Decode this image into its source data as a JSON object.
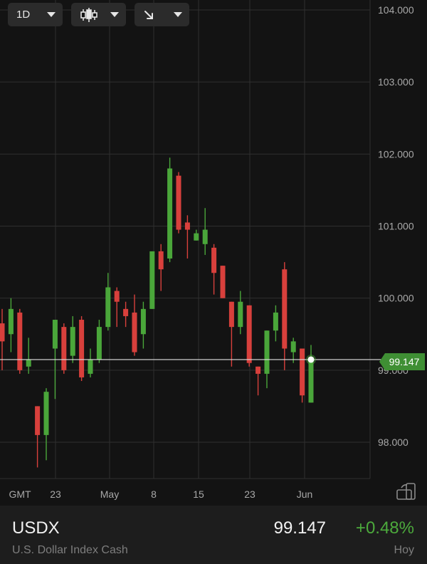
{
  "toolbar": {
    "timeframe": "1D",
    "chart_type_icon": "candlestick-icon",
    "drawing_tool_icon": "arrow-down-right-icon"
  },
  "colors": {
    "up": "#4aa63a",
    "down": "#d8403c",
    "grid": "#2f2f2f",
    "price_line": "#e0e0e0",
    "badge": "#3f8f34"
  },
  "chart_data": {
    "type": "candlestick",
    "instrument": "USDX",
    "ylim": [
      97.5,
      104.2
    ],
    "y_ticks": [
      "104.000",
      "103.000",
      "102.000",
      "101.000",
      "100.000",
      "99.000",
      "98.000"
    ],
    "x_ticks": [
      "GMT",
      "23",
      "May",
      "8",
      "15",
      "23",
      "Jun"
    ],
    "last_price": "99.147",
    "candles": [
      {
        "o": 99.65,
        "h": 99.85,
        "l": 99.0,
        "c": 99.4
      },
      {
        "o": 99.5,
        "h": 100.0,
        "l": 99.25,
        "c": 99.85
      },
      {
        "o": 99.8,
        "h": 99.85,
        "l": 98.95,
        "c": 99.0
      },
      {
        "o": 99.05,
        "h": 99.45,
        "l": 98.95,
        "c": 99.15
      },
      {
        "o": 98.5,
        "h": 98.5,
        "l": 97.65,
        "c": 98.1
      },
      {
        "o": 98.1,
        "h": 98.75,
        "l": 97.75,
        "c": 98.7
      },
      {
        "o": 99.3,
        "h": 99.7,
        "l": 98.6,
        "c": 99.7
      },
      {
        "o": 99.6,
        "h": 99.65,
        "l": 98.95,
        "c": 99.0
      },
      {
        "o": 99.2,
        "h": 99.75,
        "l": 99.1,
        "c": 99.6
      },
      {
        "o": 99.7,
        "h": 99.75,
        "l": 98.85,
        "c": 98.9
      },
      {
        "o": 98.95,
        "h": 99.3,
        "l": 98.9,
        "c": 99.15
      },
      {
        "o": 99.15,
        "h": 99.7,
        "l": 99.1,
        "c": 99.6
      },
      {
        "o": 99.6,
        "h": 100.35,
        "l": 99.55,
        "c": 100.15
      },
      {
        "o": 100.1,
        "h": 100.15,
        "l": 99.6,
        "c": 99.95
      },
      {
        "o": 99.85,
        "h": 99.95,
        "l": 99.6,
        "c": 99.75
      },
      {
        "o": 99.8,
        "h": 100.05,
        "l": 99.2,
        "c": 99.25
      },
      {
        "o": 99.5,
        "h": 99.95,
        "l": 99.3,
        "c": 99.85
      },
      {
        "o": 99.85,
        "h": 100.65,
        "l": 99.85,
        "c": 100.65
      },
      {
        "o": 100.65,
        "h": 100.75,
        "l": 100.1,
        "c": 100.4
      },
      {
        "o": 100.55,
        "h": 101.95,
        "l": 100.5,
        "c": 101.8
      },
      {
        "o": 101.7,
        "h": 101.75,
        "l": 100.9,
        "c": 100.95
      },
      {
        "o": 101.05,
        "h": 101.15,
        "l": 100.55,
        "c": 100.95
      },
      {
        "o": 100.8,
        "h": 100.95,
        "l": 100.8,
        "c": 100.9
      },
      {
        "o": 100.75,
        "h": 101.25,
        "l": 100.6,
        "c": 100.95
      },
      {
        "o": 100.7,
        "h": 100.75,
        "l": 100.05,
        "c": 100.35
      },
      {
        "o": 100.45,
        "h": 100.45,
        "l": 100.0,
        "c": 100.0
      },
      {
        "o": 99.95,
        "h": 99.95,
        "l": 99.05,
        "c": 99.6
      },
      {
        "o": 99.6,
        "h": 100.1,
        "l": 99.5,
        "c": 99.95
      },
      {
        "o": 99.9,
        "h": 99.9,
        "l": 99.05,
        "c": 99.1
      },
      {
        "o": 99.05,
        "h": 99.05,
        "l": 98.65,
        "c": 98.95
      },
      {
        "o": 98.95,
        "h": 99.55,
        "l": 98.75,
        "c": 99.55
      },
      {
        "o": 99.55,
        "h": 99.9,
        "l": 99.4,
        "c": 99.8
      },
      {
        "o": 100.4,
        "h": 100.5,
        "l": 99.0,
        "c": 99.3
      },
      {
        "o": 99.25,
        "h": 99.45,
        "l": 99.1,
        "c": 99.4
      },
      {
        "o": 99.3,
        "h": 99.3,
        "l": 98.55,
        "c": 98.65
      },
      {
        "o": 98.55,
        "h": 99.35,
        "l": 98.55,
        "c": 99.15
      }
    ]
  },
  "info": {
    "symbol": "USDX",
    "name": "U.S. Dollar Index Cash",
    "price": "99.147",
    "change": "+0.48%",
    "period": "Hoy"
  }
}
